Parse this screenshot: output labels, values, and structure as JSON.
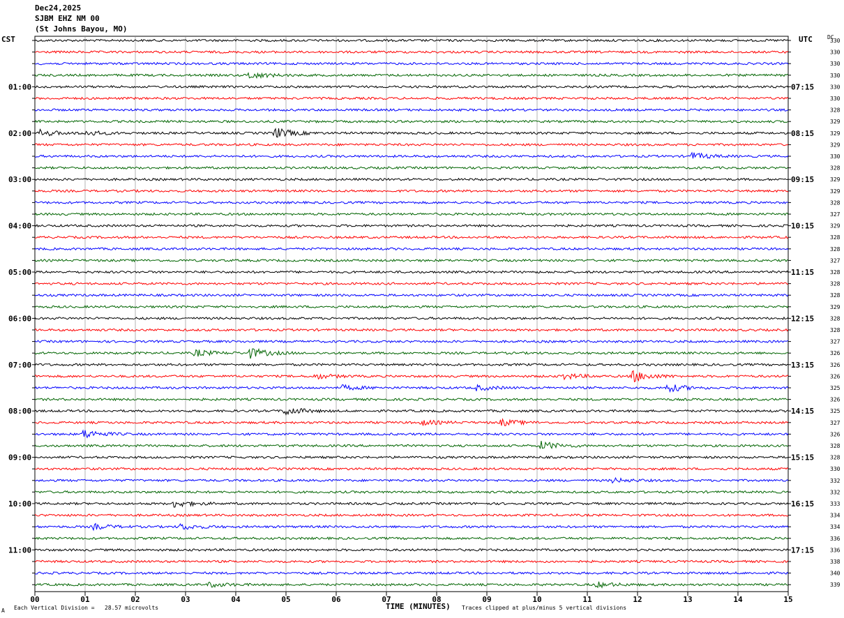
{
  "header": {
    "date": "Dec24,2025",
    "station": "SJBM EHZ NM 00",
    "location": "(St Johns Bayou, MO)"
  },
  "left_zone": "CST",
  "right_zone": "UTC",
  "dc_label": "DC",
  "chart_data": {
    "type": "line",
    "title": "SJBM EHZ NM 00",
    "xlabel": "TIME (MINUTES)",
    "x_ticks": [
      "00",
      "01",
      "02",
      "03",
      "04",
      "05",
      "06",
      "07",
      "08",
      "09",
      "10",
      "11",
      "12",
      "13",
      "14",
      "15"
    ],
    "xlim": [
      0,
      15
    ],
    "trace_colors": [
      "#000000",
      "#ff0000",
      "#0000ff",
      "#006400"
    ],
    "left_hour_labels": [
      "01:00",
      "02:00",
      "03:00",
      "04:00",
      "05:00",
      "06:00",
      "07:00",
      "08:00",
      "09:00",
      "10:00",
      "11:00"
    ],
    "right_hour_labels": [
      "07:15",
      "08:15",
      "09:15",
      "10:15",
      "11:15",
      "12:15",
      "13:15",
      "14:15",
      "15:15",
      "16:15",
      "17:15"
    ],
    "dc_offsets": [
      330,
      330,
      330,
      330,
      330,
      330,
      328,
      329,
      329,
      329,
      330,
      328,
      329,
      329,
      328,
      327,
      329,
      328,
      328,
      327,
      328,
      328,
      328,
      329,
      328,
      328,
      327,
      326,
      326,
      326,
      325,
      326,
      325,
      327,
      326,
      328,
      328,
      330,
      332,
      332,
      333,
      334,
      334,
      336,
      336,
      338,
      340,
      339
    ],
    "events": [
      {
        "trace": 3,
        "minute": 4.3,
        "amp": 2
      },
      {
        "trace": 8,
        "minute": 0.1,
        "amp": 2
      },
      {
        "trace": 8,
        "minute": 1.0,
        "amp": 1.5
      },
      {
        "trace": 8,
        "minute": 4.8,
        "amp": 3
      },
      {
        "trace": 10,
        "minute": 13.1,
        "amp": 2
      },
      {
        "trace": 27,
        "minute": 3.2,
        "amp": 2
      },
      {
        "trace": 27,
        "minute": 4.3,
        "amp": 3
      },
      {
        "trace": 29,
        "minute": 11.9,
        "amp": 3.5
      },
      {
        "trace": 29,
        "minute": 10.5,
        "amp": 2
      },
      {
        "trace": 29,
        "minute": 5.6,
        "amp": 1.5
      },
      {
        "trace": 30,
        "minute": 12.6,
        "amp": 2.5
      },
      {
        "trace": 30,
        "minute": 8.8,
        "amp": 1.5
      },
      {
        "trace": 30,
        "minute": 6.1,
        "amp": 1.5
      },
      {
        "trace": 32,
        "minute": 5.0,
        "amp": 2.5
      },
      {
        "trace": 33,
        "minute": 7.7,
        "amp": 1.5
      },
      {
        "trace": 33,
        "minute": 9.3,
        "amp": 2
      },
      {
        "trace": 34,
        "minute": 1.0,
        "amp": 2.5
      },
      {
        "trace": 35,
        "minute": 10.1,
        "amp": 2.5
      },
      {
        "trace": 38,
        "minute": 11.5,
        "amp": 1.3
      },
      {
        "trace": 40,
        "minute": 2.8,
        "amp": 2
      },
      {
        "trace": 42,
        "minute": 2.9,
        "amp": 1.8
      },
      {
        "trace": 42,
        "minute": 1.2,
        "amp": 1.5
      },
      {
        "trace": 47,
        "minute": 3.5,
        "amp": 1.3
      },
      {
        "trace": 47,
        "minute": 11.2,
        "amp": 1.5
      }
    ],
    "grid": true
  },
  "footer": {
    "scale_note": "Each Vertical Division =   28.57 microvolts",
    "clip_note": "Traces clipped at plus/minus 5 vertical divisions",
    "corner_mark": "A"
  }
}
